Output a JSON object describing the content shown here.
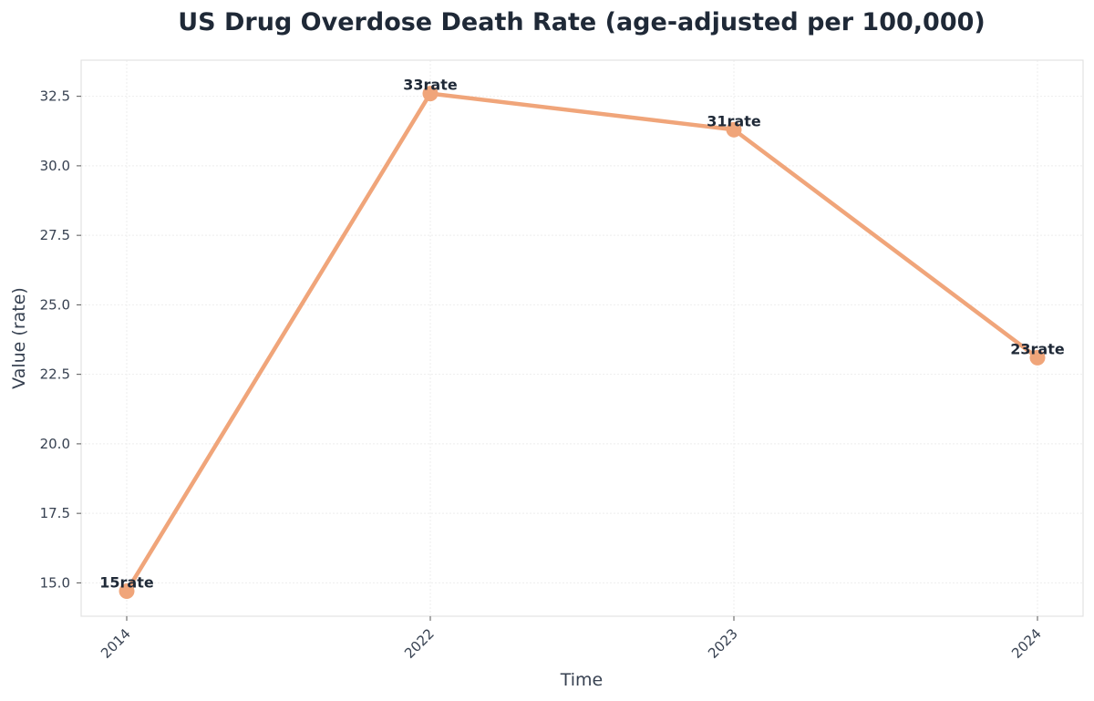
{
  "chart_data": {
    "type": "line",
    "title": "US Drug Overdose Death Rate (age-adjusted per 100,000)",
    "xlabel": "Time",
    "ylabel": "Value (rate)",
    "categories": [
      "2014",
      "2022",
      "2023",
      "2024"
    ],
    "series": [
      {
        "values": [
          14.7,
          32.6,
          31.3,
          23.1
        ],
        "labels": [
          "15rate",
          "33rate",
          "31rate",
          "23rate"
        ]
      }
    ],
    "ylim": [
      13.8,
      33.8
    ],
    "yticks": [
      "15.0",
      "17.5",
      "20.0",
      "22.5",
      "25.0",
      "27.5",
      "30.0",
      "32.5"
    ],
    "grid": true,
    "legend": "none",
    "colors": {
      "line": "#f0a57a",
      "marker": "#f0a57a",
      "grid": "#eeeeee",
      "spine": "#dddddd"
    }
  }
}
